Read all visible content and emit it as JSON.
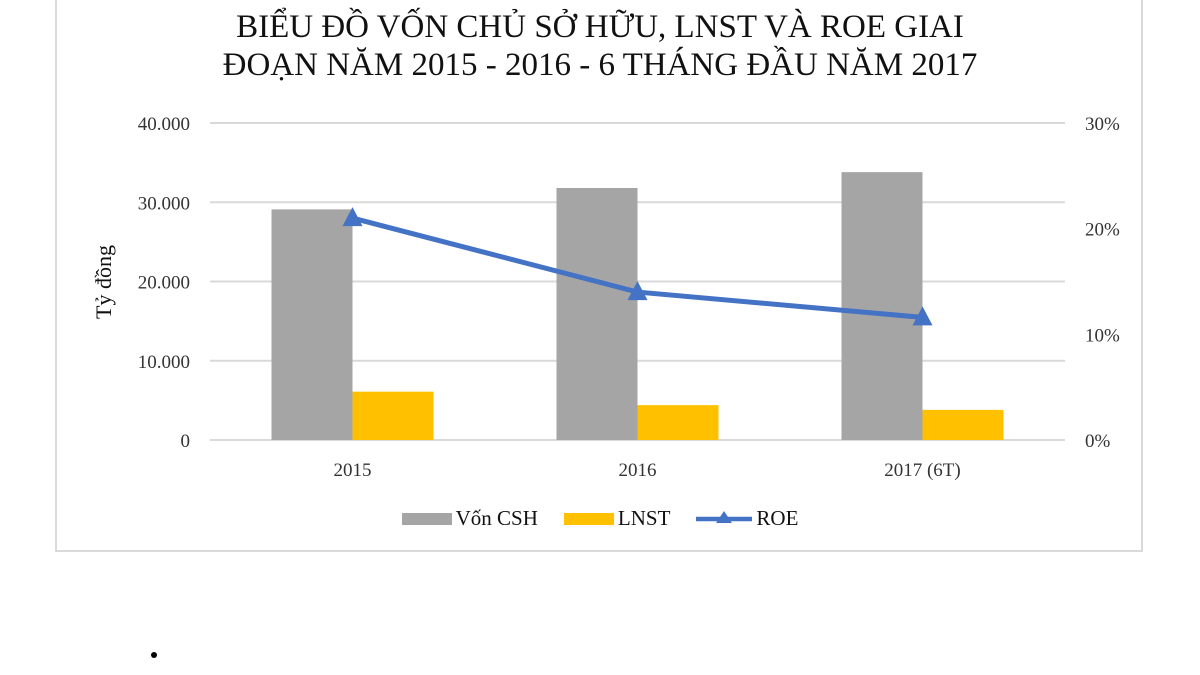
{
  "chart_data": {
    "type": "bar",
    "title": "BIỂU ĐỒ VỐN CHỦ SỞ HỮU, LNST VÀ ROE GIAI ĐOẠN NĂM 2015 - 2016 - 6 THÁNG ĐẦU NĂM 2017",
    "title_lines": [
      "BIỂU ĐỒ VỐN CHỦ SỞ HỮU, LNST VÀ ROE GIAI",
      "ĐOẠN NĂM 2015 - 2016 - 6 THÁNG ĐẦU NĂM 2017"
    ],
    "categories": [
      "2015",
      "2016",
      "2017 (6T)"
    ],
    "ylabel": "Tỷ đồng",
    "y2label": "",
    "xlabel": "",
    "ylim": [
      0,
      40000
    ],
    "y2lim": [
      0,
      0.3
    ],
    "yticks": [
      "0",
      "10.000",
      "20.000",
      "30.000",
      "40.000"
    ],
    "y2ticks": [
      "0%",
      "10%",
      "20%",
      "30%"
    ],
    "grid": true,
    "legend_position": "bottom",
    "series": [
      {
        "name": "Vốn CSH",
        "type": "bar",
        "axis": "left",
        "color": "#a5a5a5",
        "values": [
          29100,
          31800,
          33800
        ]
      },
      {
        "name": "LNST",
        "type": "bar",
        "axis": "left",
        "color": "#ffc000",
        "values": [
          6100,
          4400,
          3800
        ]
      },
      {
        "name": "ROE",
        "type": "line",
        "axis": "right",
        "marker": "triangle",
        "color": "#4472c4",
        "values": [
          0.21,
          0.14,
          0.116
        ]
      }
    ]
  },
  "legend": [
    {
      "label": "Vốn CSH",
      "color": "#a5a5a5",
      "kind": "bar"
    },
    {
      "label": "LNST",
      "color": "#ffc000",
      "kind": "bar"
    },
    {
      "label": "ROE",
      "color": "#4472c4",
      "kind": "line"
    }
  ]
}
